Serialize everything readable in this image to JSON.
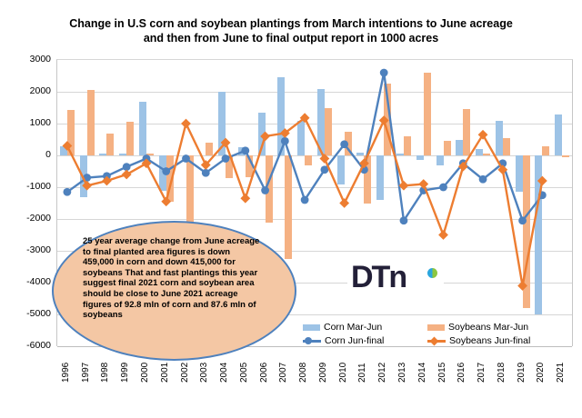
{
  "title": {
    "line1": "Change in U.S corn and soybean plantings from March intentions to June acreage",
    "line2": "and then from June to final output report in 1000 acres"
  },
  "y_axis": {
    "tick_labels": [
      "3000",
      "2000",
      "1000",
      "0",
      "-1000",
      "-2000",
      "-3000",
      "-4000",
      "-5000",
      "-6000"
    ]
  },
  "legend": {
    "items": [
      {
        "label": "Corn Mar-Jun",
        "type": "bar",
        "color": "#9DC3E6"
      },
      {
        "label": "Corn Jun-final",
        "type": "line-circle",
        "color": "#4E81BD"
      },
      {
        "label": "Soybeans Mar-Jun",
        "type": "bar",
        "color": "#F5B183"
      },
      {
        "label": "Soybeans Jun-final",
        "type": "line-diamond",
        "color": "#ED7D31"
      }
    ]
  },
  "annotation": {
    "text": "25 year average change from June acreage to final planted area figures is down 459,000 in corn and down 415,000 for soybeans That and fast plantings this year suggest final 2021 corn and soybean area should be close to June 2021 acreage figures of 92.8 mln of corn and 87.6 mln of soybeans",
    "fill_color": "#F4C7A4",
    "border_color": "#4E81BD"
  },
  "logo": {
    "text": "DTn"
  },
  "chart_data": {
    "type": "bar",
    "subtype": "combo bar + line",
    "unit": "1000 acres",
    "title": "Change in U.S corn and soybean plantings from March intentions to June acreage and then from June to final output report in 1000 acres",
    "categories": [
      1996,
      1997,
      1998,
      1999,
      2000,
      2001,
      2002,
      2003,
      2004,
      2005,
      2006,
      2007,
      2008,
      2009,
      2010,
      2011,
      2012,
      2013,
      2014,
      2015,
      2016,
      2017,
      2018,
      2019,
      2020,
      2021
    ],
    "ylim": [
      -6000,
      3000
    ],
    "ytick_step": 1000,
    "grid": true,
    "legend_position": "bottom-right",
    "series": [
      {
        "name": "Corn Mar-Jun",
        "type": "bar",
        "color": "#9DC3E6",
        "values": [
          280,
          -1300,
          50,
          50,
          1700,
          -1100,
          0,
          0,
          2000,
          250,
          1350,
          2450,
          1100,
          2100,
          -900,
          100,
          -1400,
          50,
          -150,
          -300,
          500,
          200,
          1100,
          -1150,
          -5000,
          1300
        ]
      },
      {
        "name": "Soybeans Mar-Jun",
        "type": "bar",
        "color": "#F5B183",
        "values": [
          1420,
          2050,
          700,
          1050,
          50,
          -1450,
          -2500,
          400,
          -700,
          -680,
          -2100,
          -3250,
          -300,
          1500,
          750,
          -1500,
          2250,
          600,
          2600,
          450,
          1450,
          50,
          550,
          -4800,
          300,
          -50
        ]
      },
      {
        "name": "Corn Jun-final",
        "type": "line",
        "marker": "circle",
        "color": "#4E81BD",
        "values": [
          -1150,
          -700,
          -650,
          -360,
          -100,
          -500,
          -100,
          -550,
          -100,
          150,
          -1100,
          450,
          -1400,
          -450,
          350,
          -450,
          2600,
          -2050,
          -1100,
          -1000,
          -250,
          -750,
          -250,
          -2050,
          -1250,
          null
        ]
      },
      {
        "name": "Soybeans Jun-final",
        "type": "line",
        "marker": "diamond",
        "color": "#ED7D31",
        "values": [
          300,
          -950,
          -800,
          -600,
          -250,
          -1450,
          1000,
          -300,
          400,
          -1350,
          600,
          700,
          1180,
          -100,
          -1500,
          -250,
          1100,
          -950,
          -900,
          -2500,
          -350,
          650,
          -450,
          -4100,
          -800,
          null
        ]
      }
    ]
  }
}
